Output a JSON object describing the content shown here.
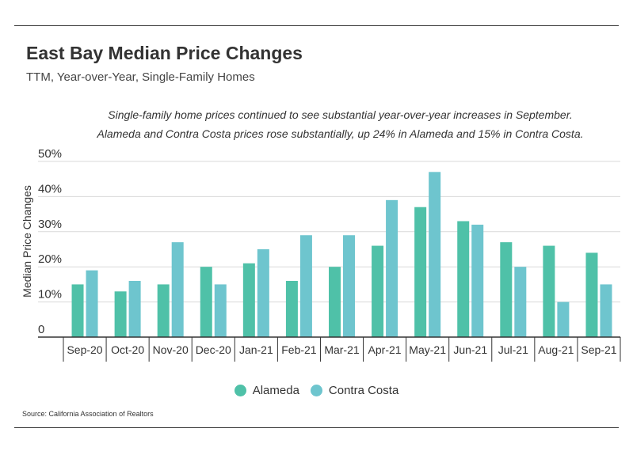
{
  "title": "East Bay Median Price Changes",
  "subtitle": "TTM, Year-over-Year, Single-Family Homes",
  "annotation": [
    "Single-family home prices continued to see substantial year-over-year increases in September.",
    "Alameda and Contra Costa prices rose substantially, up 24% in Alameda and 15% in Contra Costa."
  ],
  "source": "Source:  California Association of Realtors",
  "colors": {
    "alameda": "#4fc1a8",
    "contra_costa": "#6ec5ce"
  },
  "chart_data": {
    "type": "bar",
    "title": "East Bay Median Price Changes",
    "subtitle": "TTM, Year-over-Year, Single-Family Homes",
    "xlabel": "",
    "ylabel": "Median Price Changes",
    "ylim": [
      0,
      50
    ],
    "yticks": [
      {
        "value": 0,
        "label": "0"
      },
      {
        "value": 10,
        "label": "10%"
      },
      {
        "value": 20,
        "label": "20%"
      },
      {
        "value": 30,
        "label": "30%"
      },
      {
        "value": 40,
        "label": "40%"
      },
      {
        "value": 50,
        "label": "50%"
      }
    ],
    "grid": true,
    "legend": "bottom-center",
    "categories": [
      "Sep-20",
      "Oct-20",
      "Nov-20",
      "Dec-20",
      "Jan-21",
      "Feb-21",
      "Mar-21",
      "Apr-21",
      "May-21",
      "Jun-21",
      "Jul-21",
      "Aug-21",
      "Sep-21"
    ],
    "series": [
      {
        "name": "Alameda",
        "color": "#4fc1a8",
        "values": [
          15,
          13,
          15,
          20,
          21,
          16,
          20,
          26,
          37,
          33,
          27,
          26,
          24
        ]
      },
      {
        "name": "Contra Costa",
        "color": "#6ec5ce",
        "values": [
          19,
          16,
          27,
          15,
          25,
          29,
          29,
          39,
          47,
          32,
          20,
          10,
          15
        ]
      }
    ]
  }
}
